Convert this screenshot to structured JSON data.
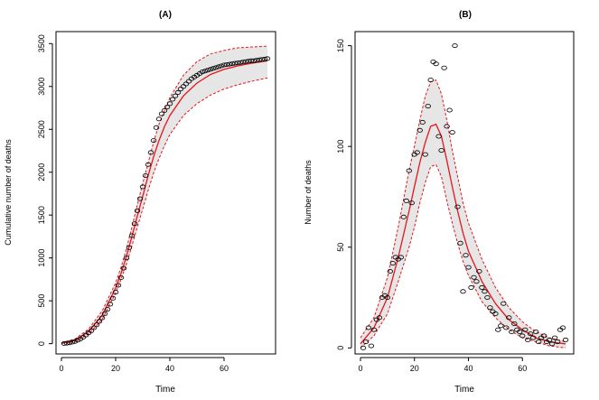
{
  "chart_data": [
    {
      "type": "scatter",
      "title": "(A)",
      "xlabel": "Time",
      "ylabel": "Cumulative number of deaths",
      "xlim": [
        -2,
        79
      ],
      "ylim": [
        -120,
        3640
      ],
      "xticks": [
        0,
        20,
        40,
        60
      ],
      "yticks": [
        0,
        500,
        1000,
        1500,
        2000,
        2500,
        3000,
        3500
      ],
      "series": [
        {
          "kind": "observed",
          "x": [
            1,
            2,
            3,
            4,
            5,
            6,
            7,
            8,
            9,
            10,
            11,
            12,
            13,
            14,
            15,
            16,
            17,
            18,
            19,
            20,
            21,
            22,
            23,
            24,
            25,
            26,
            27,
            28,
            29,
            30,
            31,
            32,
            33,
            34,
            35,
            36,
            37,
            38,
            39,
            40,
            41,
            42,
            43,
            44,
            45,
            46,
            47,
            48,
            49,
            50,
            51,
            52,
            53,
            54,
            55,
            56,
            57,
            58,
            59,
            60,
            61,
            62,
            63,
            64,
            65,
            66,
            67,
            68,
            69,
            70,
            71,
            72,
            73,
            74,
            75,
            76
          ],
          "y": [
            2,
            5,
            10,
            18,
            25,
            40,
            55,
            75,
            100,
            125,
            150,
            185,
            220,
            260,
            300,
            350,
            400,
            460,
            530,
            600,
            680,
            770,
            880,
            1000,
            1120,
            1260,
            1400,
            1550,
            1690,
            1830,
            1960,
            2090,
            2230,
            2370,
            2520,
            2620,
            2680,
            2720,
            2760,
            2800,
            2850,
            2890,
            2930,
            2970,
            3000,
            3030,
            3060,
            3090,
            3110,
            3130,
            3150,
            3170,
            3180,
            3190,
            3200,
            3210,
            3220,
            3230,
            3240,
            3250,
            3255,
            3260,
            3265,
            3270,
            3275,
            3280,
            3285,
            3290,
            3295,
            3300,
            3300,
            3305,
            3310,
            3315,
            3320,
            3325
          ]
        },
        {
          "kind": "fitted",
          "x": [
            0,
            5,
            10,
            15,
            20,
            22,
            24,
            26,
            28,
            30,
            32,
            34,
            36,
            38,
            40,
            45,
            50,
            55,
            60,
            65,
            70,
            76
          ],
          "y": [
            5,
            40,
            140,
            330,
            650,
            820,
            1020,
            1250,
            1490,
            1720,
            1960,
            2180,
            2370,
            2530,
            2660,
            2890,
            3040,
            3140,
            3200,
            3240,
            3270,
            3300
          ]
        },
        {
          "kind": "upper",
          "x": [
            0,
            5,
            10,
            15,
            20,
            22,
            24,
            26,
            28,
            30,
            32,
            34,
            36,
            38,
            40,
            45,
            50,
            55,
            60,
            65,
            70,
            76
          ],
          "y": [
            8,
            55,
            170,
            380,
            710,
            890,
            1110,
            1360,
            1620,
            1870,
            2110,
            2350,
            2560,
            2720,
            2870,
            3130,
            3290,
            3380,
            3420,
            3450,
            3460,
            3470
          ]
        },
        {
          "kind": "lower",
          "x": [
            0,
            5,
            10,
            15,
            20,
            22,
            24,
            26,
            28,
            30,
            32,
            34,
            36,
            38,
            40,
            45,
            50,
            55,
            60,
            65,
            70,
            76
          ],
          "y": [
            2,
            25,
            110,
            280,
            590,
            750,
            930,
            1140,
            1360,
            1570,
            1790,
            1990,
            2160,
            2310,
            2440,
            2660,
            2800,
            2900,
            2970,
            3020,
            3060,
            3100
          ]
        }
      ]
    },
    {
      "type": "scatter",
      "title": "(B)",
      "xlabel": "Time",
      "ylabel": "Number of deaths",
      "xlim": [
        -2,
        79
      ],
      "ylim": [
        -3,
        157
      ],
      "xticks": [
        0,
        20,
        40,
        60
      ],
      "yticks": [
        0,
        50,
        100,
        150
      ],
      "series": [
        {
          "kind": "observed",
          "x": [
            1,
            2,
            3,
            4,
            5,
            6,
            7,
            8,
            9,
            10,
            11,
            12,
            13,
            14,
            15,
            16,
            17,
            18,
            19,
            20,
            21,
            22,
            23,
            24,
            25,
            26,
            27,
            28,
            29,
            30,
            31,
            32,
            33,
            34,
            35,
            36,
            37,
            38,
            39,
            40,
            41,
            42,
            43,
            44,
            45,
            46,
            47,
            48,
            49,
            50,
            51,
            52,
            53,
            54,
            55,
            56,
            57,
            58,
            59,
            60,
            61,
            62,
            63,
            64,
            65,
            66,
            67,
            68,
            69,
            70,
            71,
            72,
            73,
            74,
            75,
            76
          ],
          "y": [
            0,
            3,
            10,
            1,
            9,
            14,
            15,
            25,
            26,
            25,
            38,
            42,
            45,
            44,
            45,
            65,
            73,
            88,
            72,
            96,
            97,
            108,
            112,
            96,
            120,
            133,
            142,
            141,
            105,
            98,
            139,
            110,
            118,
            107,
            150,
            70,
            52,
            28,
            46,
            40,
            30,
            35,
            33,
            38,
            30,
            28,
            25,
            20,
            18,
            17,
            9,
            11,
            22,
            10,
            15,
            8,
            12,
            9,
            8,
            6,
            9,
            4,
            7,
            5,
            8,
            3,
            5,
            6,
            3,
            4,
            2,
            5,
            3,
            9,
            10,
            4
          ]
        },
        {
          "kind": "fitted",
          "x": [
            0,
            5,
            10,
            14,
            18,
            20,
            22,
            24,
            26,
            28,
            30,
            32,
            34,
            36,
            38,
            40,
            45,
            50,
            55,
            60,
            65,
            70,
            76
          ],
          "y": [
            2,
            10,
            25,
            45,
            68,
            80,
            92,
            102,
            110,
            111,
            105,
            93,
            80,
            68,
            57,
            48,
            33,
            22,
            14,
            9,
            5,
            3,
            2
          ]
        },
        {
          "kind": "upper",
          "x": [
            0,
            5,
            10,
            14,
            18,
            20,
            22,
            24,
            26,
            28,
            30,
            32,
            34,
            36,
            38,
            40,
            45,
            50,
            55,
            60,
            65,
            70,
            76
          ],
          "y": [
            5,
            15,
            35,
            60,
            88,
            100,
            113,
            125,
            132,
            133,
            126,
            113,
            98,
            85,
            72,
            62,
            44,
            30,
            20,
            13,
            8,
            5,
            3
          ]
        },
        {
          "kind": "lower",
          "x": [
            0,
            5,
            10,
            14,
            18,
            20,
            22,
            24,
            26,
            28,
            30,
            32,
            34,
            36,
            38,
            40,
            45,
            50,
            55,
            60,
            65,
            70,
            76
          ],
          "y": [
            0,
            6,
            17,
            33,
            50,
            60,
            72,
            82,
            90,
            91,
            85,
            73,
            62,
            52,
            43,
            36,
            23,
            15,
            9,
            5,
            3,
            1,
            0
          ]
        }
      ]
    }
  ]
}
